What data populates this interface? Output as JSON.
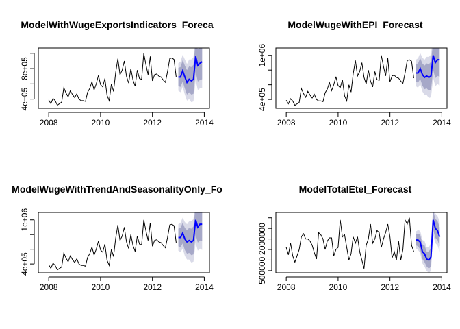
{
  "figure": {
    "background": "#ffffff",
    "history_color": "#000000",
    "forecast_color": "#0000ff",
    "band_inner_color": "#a6a8c8",
    "band_outer_color": "#d9dae8"
  },
  "chart_data": [
    {
      "type": "line",
      "title": "ModelWithWugeExportsIndicators_Foreca",
      "xlabel": "",
      "ylabel": "",
      "xlim": [
        2007.6,
        2014.2
      ],
      "ylim": [
        280000,
        1070000
      ],
      "x_ticks": [
        2008,
        2010,
        2012,
        2014
      ],
      "x_tick_labels": [
        "2008",
        "2010",
        "2012",
        "2014"
      ],
      "y_ticks": [
        400000,
        800000
      ],
      "y_tick_labels": [
        "4e+05",
        "8e+05"
      ],
      "grid": false,
      "history": {
        "x": [
          2008.0,
          2008.083,
          2008.167,
          2008.25,
          2008.333,
          2008.417,
          2008.5,
          2008.583,
          2008.667,
          2008.75,
          2008.833,
          2008.917,
          2009.0,
          2009.083,
          2009.167,
          2009.25,
          2009.333,
          2009.417,
          2009.5,
          2009.583,
          2009.667,
          2009.75,
          2009.833,
          2009.917,
          2010.0,
          2010.083,
          2010.167,
          2010.25,
          2010.333,
          2010.417,
          2010.5,
          2010.583,
          2010.667,
          2010.75,
          2010.833,
          2010.917,
          2011.0,
          2011.083,
          2011.167,
          2011.25,
          2011.333,
          2011.417,
          2011.5,
          2011.583,
          2011.667,
          2011.75,
          2011.833,
          2011.917,
          2012.0,
          2012.083,
          2012.167,
          2012.25,
          2012.333,
          2012.417,
          2012.5,
          2012.583,
          2012.667,
          2012.75,
          2012.833,
          2012.917
        ],
        "y": [
          390000,
          340000,
          410000,
          380000,
          320000,
          340000,
          360000,
          550000,
          480000,
          430000,
          510000,
          460000,
          420000,
          470000,
          400000,
          380000,
          380000,
          370000,
          490000,
          540000,
          630000,
          520000,
          600000,
          710000,
          590000,
          560000,
          670000,
          450000,
          380000,
          600000,
          500000,
          750000,
          930000,
          720000,
          780000,
          900000,
          700000,
          610000,
          800000,
          650000,
          570000,
          780000,
          670000,
          660000,
          1000000,
          850000,
          720000,
          960000,
          640000,
          720000,
          730000,
          700000,
          690000,
          650000,
          620000,
          760000,
          930000,
          940000,
          920000,
          690000
        ]
      },
      "forecast": {
        "x": [
          2013.0,
          2013.083,
          2013.167,
          2013.25,
          2013.333,
          2013.417,
          2013.5,
          2013.583,
          2013.667,
          2013.75,
          2013.833,
          2013.917
        ],
        "mean": [
          690000,
          690000,
          770000,
          690000,
          620000,
          660000,
          640000,
          660000,
          960000,
          840000,
          870000,
          890000
        ],
        "lo80": [
          570000,
          560000,
          630000,
          540000,
          460000,
          490000,
          460000,
          470000,
          760000,
          630000,
          650000,
          660000
        ],
        "hi80": [
          810000,
          820000,
          910000,
          840000,
          780000,
          830000,
          820000,
          850000,
          1160000,
          1050000,
          1090000,
          1120000
        ],
        "lo95": [
          510000,
          490000,
          560000,
          460000,
          380000,
          400000,
          360000,
          370000,
          650000,
          520000,
          540000,
          540000
        ],
        "hi95": [
          870000,
          890000,
          980000,
          920000,
          860000,
          920000,
          920000,
          950000,
          1270000,
          1160000,
          1200000,
          1240000
        ]
      }
    },
    {
      "type": "line",
      "title": "ModelWugeWithEPI_Forecast",
      "xlabel": "",
      "ylabel": "",
      "xlim": [
        2007.6,
        2014.2
      ],
      "ylim": [
        280000,
        1100000
      ],
      "x_ticks": [
        2008,
        2010,
        2012,
        2014
      ],
      "x_tick_labels": [
        "2008",
        "2010",
        "2012",
        "2014"
      ],
      "y_ticks": [
        400000,
        1000000
      ],
      "y_tick_labels": [
        "4e+05",
        "1e+06"
      ],
      "grid": false,
      "history": {
        "x": [
          2008.0,
          2008.083,
          2008.167,
          2008.25,
          2008.333,
          2008.417,
          2008.5,
          2008.583,
          2008.667,
          2008.75,
          2008.833,
          2008.917,
          2009.0,
          2009.083,
          2009.167,
          2009.25,
          2009.333,
          2009.417,
          2009.5,
          2009.583,
          2009.667,
          2009.75,
          2009.833,
          2009.917,
          2010.0,
          2010.083,
          2010.167,
          2010.25,
          2010.333,
          2010.417,
          2010.5,
          2010.583,
          2010.667,
          2010.75,
          2010.833,
          2010.917,
          2011.0,
          2011.083,
          2011.167,
          2011.25,
          2011.333,
          2011.417,
          2011.5,
          2011.583,
          2011.667,
          2011.75,
          2011.833,
          2011.917,
          2012.0,
          2012.083,
          2012.167,
          2012.25,
          2012.333,
          2012.417,
          2012.5,
          2012.583,
          2012.667,
          2012.75,
          2012.833,
          2012.917
        ],
        "y": [
          390000,
          340000,
          410000,
          380000,
          320000,
          340000,
          360000,
          550000,
          480000,
          430000,
          510000,
          460000,
          420000,
          470000,
          400000,
          380000,
          380000,
          370000,
          490000,
          540000,
          630000,
          520000,
          600000,
          710000,
          590000,
          560000,
          670000,
          450000,
          380000,
          600000,
          500000,
          750000,
          930000,
          720000,
          780000,
          900000,
          700000,
          610000,
          800000,
          650000,
          570000,
          780000,
          670000,
          660000,
          1000000,
          850000,
          720000,
          960000,
          640000,
          720000,
          730000,
          700000,
          690000,
          650000,
          620000,
          760000,
          930000,
          940000,
          920000,
          690000
        ]
      },
      "forecast": {
        "x": [
          2013.0,
          2013.083,
          2013.167,
          2013.25,
          2013.333,
          2013.417,
          2013.5,
          2013.583,
          2013.667,
          2013.75,
          2013.833,
          2013.917
        ],
        "mean": [
          760000,
          760000,
          820000,
          740000,
          700000,
          720000,
          700000,
          720000,
          1000000,
          900000,
          940000,
          940000
        ],
        "lo80": [
          640000,
          630000,
          680000,
          590000,
          540000,
          550000,
          520000,
          530000,
          800000,
          690000,
          720000,
          710000
        ],
        "hi80": [
          880000,
          890000,
          960000,
          890000,
          860000,
          890000,
          880000,
          910000,
          1200000,
          1110000,
          1160000,
          1170000
        ],
        "lo95": [
          580000,
          560000,
          610000,
          510000,
          460000,
          460000,
          420000,
          430000,
          690000,
          580000,
          610000,
          590000
        ],
        "hi95": [
          940000,
          960000,
          1030000,
          970000,
          940000,
          980000,
          980000,
          1010000,
          1310000,
          1220000,
          1270000,
          1290000
        ]
      }
    },
    {
      "type": "line",
      "title": "ModelWugeWithTrendAndSeasonalityOnly_Fo",
      "xlabel": "",
      "ylabel": "",
      "xlim": [
        2007.6,
        2014.2
      ],
      "ylim": [
        280000,
        1100000
      ],
      "x_ticks": [
        2008,
        2010,
        2012,
        2014
      ],
      "x_tick_labels": [
        "2008",
        "2010",
        "2012",
        "2014"
      ],
      "y_ticks": [
        400000,
        1000000
      ],
      "y_tick_labels": [
        "4e+05",
        "1e+06"
      ],
      "grid": false,
      "history": {
        "x": [
          2008.0,
          2008.083,
          2008.167,
          2008.25,
          2008.333,
          2008.417,
          2008.5,
          2008.583,
          2008.667,
          2008.75,
          2008.833,
          2008.917,
          2009.0,
          2009.083,
          2009.167,
          2009.25,
          2009.333,
          2009.417,
          2009.5,
          2009.583,
          2009.667,
          2009.75,
          2009.833,
          2009.917,
          2010.0,
          2010.083,
          2010.167,
          2010.25,
          2010.333,
          2010.417,
          2010.5,
          2010.583,
          2010.667,
          2010.75,
          2010.833,
          2010.917,
          2011.0,
          2011.083,
          2011.167,
          2011.25,
          2011.333,
          2011.417,
          2011.5,
          2011.583,
          2011.667,
          2011.75,
          2011.833,
          2011.917,
          2012.0,
          2012.083,
          2012.167,
          2012.25,
          2012.333,
          2012.417,
          2012.5,
          2012.583,
          2012.667,
          2012.75,
          2012.833,
          2012.917
        ],
        "y": [
          390000,
          340000,
          410000,
          380000,
          320000,
          340000,
          360000,
          550000,
          480000,
          430000,
          510000,
          460000,
          420000,
          470000,
          400000,
          380000,
          380000,
          370000,
          490000,
          540000,
          630000,
          520000,
          600000,
          710000,
          590000,
          560000,
          670000,
          450000,
          380000,
          600000,
          500000,
          750000,
          930000,
          720000,
          780000,
          900000,
          700000,
          610000,
          800000,
          650000,
          570000,
          780000,
          670000,
          660000,
          1000000,
          850000,
          720000,
          960000,
          640000,
          720000,
          730000,
          700000,
          690000,
          650000,
          620000,
          760000,
          930000,
          940000,
          920000,
          690000
        ]
      },
      "forecast": {
        "x": [
          2013.0,
          2013.083,
          2013.167,
          2013.25,
          2013.333,
          2013.417,
          2013.5,
          2013.583,
          2013.667,
          2013.75,
          2013.833,
          2013.917
        ],
        "mean": [
          760000,
          760000,
          820000,
          740000,
          700000,
          720000,
          700000,
          720000,
          1000000,
          900000,
          940000,
          940000
        ],
        "lo80": [
          640000,
          630000,
          680000,
          590000,
          540000,
          550000,
          520000,
          530000,
          800000,
          690000,
          720000,
          710000
        ],
        "hi80": [
          880000,
          890000,
          960000,
          890000,
          860000,
          890000,
          880000,
          910000,
          1200000,
          1110000,
          1160000,
          1170000
        ],
        "lo95": [
          580000,
          560000,
          610000,
          510000,
          460000,
          460000,
          420000,
          430000,
          690000,
          580000,
          610000,
          590000
        ],
        "hi95": [
          940000,
          960000,
          1030000,
          970000,
          940000,
          980000,
          980000,
          1010000,
          1310000,
          1220000,
          1270000,
          1290000
        ]
      }
    },
    {
      "type": "line",
      "title": "ModelTotalEtel_Forecast",
      "xlabel": "",
      "ylabel": "",
      "xlim": [
        2007.6,
        2014.2
      ],
      "ylim": [
        400000,
        3250000
      ],
      "x_ticks": [
        2008,
        2010,
        2012,
        2014
      ],
      "x_tick_labels": [
        "2008",
        "2010",
        "2012",
        "2014"
      ],
      "y_ticks": [
        500000,
        2000000
      ],
      "y_tick_labels": [
        "500000",
        "2000000"
      ],
      "grid": false,
      "history": {
        "x": [
          2008.0,
          2008.083,
          2008.167,
          2008.25,
          2008.333,
          2008.417,
          2008.5,
          2008.583,
          2008.667,
          2008.75,
          2008.833,
          2008.917,
          2009.0,
          2009.083,
          2009.167,
          2009.25,
          2009.333,
          2009.417,
          2009.5,
          2009.583,
          2009.667,
          2009.75,
          2009.833,
          2009.917,
          2010.0,
          2010.083,
          2010.167,
          2010.25,
          2010.333,
          2010.417,
          2010.5,
          2010.583,
          2010.667,
          2010.75,
          2010.833,
          2010.917,
          2011.0,
          2011.083,
          2011.167,
          2011.25,
          2011.333,
          2011.417,
          2011.5,
          2011.583,
          2011.667,
          2011.75,
          2011.833,
          2011.917,
          2012.0,
          2012.083,
          2012.167,
          2012.25,
          2012.333,
          2012.417,
          2012.5,
          2012.583,
          2012.667,
          2012.75,
          2012.833,
          2012.917
        ],
        "y": [
          1600000,
          1250000,
          1800000,
          1200000,
          900000,
          1200000,
          1500000,
          2100000,
          2250000,
          2000000,
          2000000,
          1900000,
          1700000,
          1350000,
          1050000,
          2300000,
          2200000,
          2000000,
          1500000,
          1900000,
          2050000,
          2050000,
          1200000,
          1500000,
          1600000,
          2900000,
          2100000,
          2200000,
          1600000,
          1000000,
          1300000,
          2100000,
          1800000,
          2100000,
          1400000,
          1000000,
          600000,
          1700000,
          2000000,
          2700000,
          1800000,
          2000000,
          2400000,
          2300000,
          1600000,
          2000000,
          2300000,
          2700000,
          2100000,
          1100000,
          1400000,
          1000000,
          1900000,
          1000000,
          1500000,
          2900000,
          2700000,
          3000000,
          1700000,
          1400000
        ]
      },
      "forecast": {
        "x": [
          2013.0,
          2013.083,
          2013.167,
          2013.25,
          2013.333,
          2013.417,
          2013.5,
          2013.583,
          2013.667,
          2013.75,
          2013.833,
          2013.917
        ],
        "mean": [
          1950000,
          1950000,
          1850000,
          1400000,
          1300000,
          1050000,
          1000000,
          1150000,
          2900000,
          2500000,
          2400000,
          2100000
        ],
        "lo80": [
          1700000,
          1650000,
          1500000,
          1050000,
          900000,
          700000,
          600000,
          700000,
          2450000,
          2050000,
          1950000,
          1650000
        ],
        "hi80": [
          2200000,
          2250000,
          2200000,
          1750000,
          1700000,
          1400000,
          1400000,
          1600000,
          3350000,
          2950000,
          2850000,
          2550000
        ],
        "lo95": [
          1550000,
          1480000,
          1320000,
          850000,
          700000,
          480000,
          400000,
          480000,
          2200000,
          1800000,
          1700000,
          1400000
        ],
        "hi95": [
          2350000,
          2420000,
          2380000,
          1950000,
          1900000,
          1620000,
          1600000,
          1820000,
          3600000,
          3200000,
          3100000,
          2800000
        ]
      }
    }
  ]
}
